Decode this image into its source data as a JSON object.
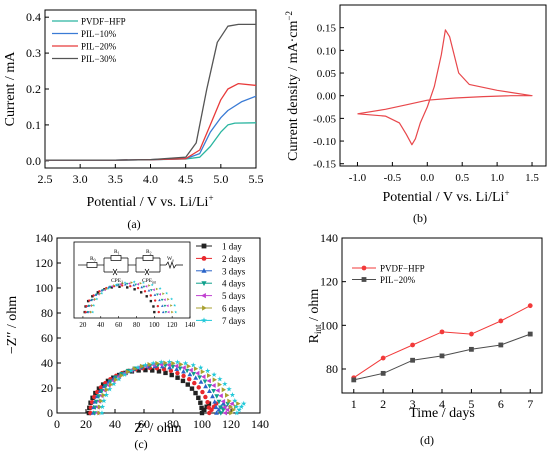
{
  "chart_data": [
    {
      "id": "a",
      "type": "line",
      "panel_label": "(a)",
      "xlabel": "Potential / V vs. Li/Li",
      "xlabel_sup": "+",
      "ylabel": "Current / mA",
      "xlim": [
        2.5,
        5.5
      ],
      "ylim": [
        -0.02,
        0.42
      ],
      "xticks": [
        "2.5",
        "3.0",
        "3.5",
        "4.0",
        "4.5",
        "5.0",
        "5.5"
      ],
      "yticks": [
        "0.0",
        "0.1",
        "0.2",
        "0.3",
        "0.4"
      ],
      "legend_position": "top-left",
      "series": [
        {
          "name": "PVDF−HFP",
          "color": "#2ab5a0",
          "points": [
            [
              2.5,
              0.002
            ],
            [
              3.0,
              0.002
            ],
            [
              3.5,
              0.002
            ],
            [
              4.0,
              0.003
            ],
            [
              4.5,
              0.005
            ],
            [
              4.7,
              0.01
            ],
            [
              4.85,
              0.04
            ],
            [
              5.0,
              0.08
            ],
            [
              5.1,
              0.1
            ],
            [
              5.2,
              0.105
            ],
            [
              5.5,
              0.106
            ]
          ]
        },
        {
          "name": "PIL−10%",
          "color": "#3a7bd5",
          "points": [
            [
              2.5,
              0.002
            ],
            [
              3.0,
              0.002
            ],
            [
              3.5,
              0.002
            ],
            [
              4.0,
              0.003
            ],
            [
              4.5,
              0.006
            ],
            [
              4.7,
              0.02
            ],
            [
              4.85,
              0.08
            ],
            [
              5.0,
              0.12
            ],
            [
              5.1,
              0.14
            ],
            [
              5.3,
              0.165
            ],
            [
              5.5,
              0.18
            ]
          ]
        },
        {
          "name": "PIL−20%",
          "color": "#e83a3a",
          "points": [
            [
              2.5,
              0.002
            ],
            [
              3.0,
              0.002
            ],
            [
              3.5,
              0.002
            ],
            [
              4.0,
              0.003
            ],
            [
              4.5,
              0.006
            ],
            [
              4.7,
              0.03
            ],
            [
              4.85,
              0.1
            ],
            [
              5.0,
              0.17
            ],
            [
              5.1,
              0.2
            ],
            [
              5.25,
              0.215
            ],
            [
              5.5,
              0.21
            ]
          ]
        },
        {
          "name": "PIL−30%",
          "color": "#555555",
          "points": [
            [
              2.5,
              0.002
            ],
            [
              3.0,
              0.002
            ],
            [
              3.5,
              0.002
            ],
            [
              4.0,
              0.003
            ],
            [
              4.5,
              0.01
            ],
            [
              4.65,
              0.05
            ],
            [
              4.8,
              0.2
            ],
            [
              4.95,
              0.33
            ],
            [
              5.1,
              0.375
            ],
            [
              5.25,
              0.38
            ],
            [
              5.5,
              0.38
            ]
          ]
        }
      ]
    },
    {
      "id": "b",
      "type": "line",
      "panel_label": "(b)",
      "xlabel": "Potential / V vs. Li/Li",
      "xlabel_sup": "+",
      "ylabel": "Current density / mA·cm",
      "ylabel_sup": "−2",
      "xlim": [
        -1.25,
        1.7
      ],
      "ylim": [
        -0.155,
        0.2
      ],
      "xticks": [
        "-1.0",
        "-0.5",
        "0.0",
        "0.5",
        "1.0",
        "1.5"
      ],
      "yticks": [
        "-0.15",
        "-0.10",
        "-0.05",
        "0.00",
        "0.05",
        "0.10",
        "0.15"
      ],
      "series": [
        {
          "name": "",
          "color": "#e8474b",
          "points": [
            [
              -1.0,
              -0.04
            ],
            [
              -0.6,
              -0.045
            ],
            [
              -0.4,
              -0.06
            ],
            [
              -0.3,
              -0.085
            ],
            [
              -0.22,
              -0.108
            ],
            [
              -0.17,
              -0.095
            ],
            [
              -0.1,
              -0.06
            ],
            [
              0.0,
              -0.025
            ],
            [
              0.1,
              0.02
            ],
            [
              0.2,
              0.09
            ],
            [
              0.26,
              0.145
            ],
            [
              0.32,
              0.13
            ],
            [
              0.45,
              0.05
            ],
            [
              0.6,
              0.025
            ],
            [
              1.0,
              0.012
            ],
            [
              1.5,
              0.0
            ],
            [
              1.2,
              0.0
            ],
            [
              0.8,
              -0.002
            ],
            [
              0.4,
              -0.005
            ],
            [
              0.0,
              -0.01
            ],
            [
              -0.3,
              -0.02
            ],
            [
              -0.6,
              -0.03
            ],
            [
              -1.0,
              -0.04
            ]
          ]
        }
      ]
    },
    {
      "id": "c",
      "type": "scatter",
      "panel_label": "(c)",
      "xlabel": "Z′ / ohm",
      "ylabel": "−Z′′ / ohm",
      "xlim": [
        0,
        140
      ],
      "ylim": [
        0,
        140
      ],
      "xticks": [
        "0",
        "20",
        "40",
        "60",
        "80",
        "100",
        "120",
        "140"
      ],
      "yticks": [
        "0",
        "20",
        "40",
        "60",
        "80",
        "100",
        "120",
        "140"
      ],
      "legend_position": "top-right",
      "series": [
        {
          "name": "1 day",
          "color": "#222222",
          "marker": "square",
          "x0": 22,
          "x1": 100
        },
        {
          "name": "2 days",
          "color": "#e8282d",
          "marker": "circle",
          "x0": 23,
          "x1": 105
        },
        {
          "name": "3 days",
          "color": "#2a64c8",
          "marker": "triangle-up",
          "x0": 25,
          "x1": 110
        },
        {
          "name": "4 days",
          "color": "#0fa08c",
          "marker": "triangle-down",
          "x0": 26,
          "x1": 113
        },
        {
          "name": "5 days",
          "color": "#c040d0",
          "marker": "triangle-left",
          "x0": 28,
          "x1": 116
        },
        {
          "name": "6 days",
          "color": "#a8a030",
          "marker": "triangle-right",
          "x0": 29,
          "x1": 120
        },
        {
          "name": "7 days",
          "color": "#20c8d8",
          "marker": "star",
          "x0": 31,
          "x1": 124
        }
      ],
      "inset": {
        "circuit_labels": [
          "R",
          "R",
          "R",
          "W",
          "CPE",
          "CPE"
        ],
        "circuit_subs": [
          "0",
          "1",
          "2",
          "o",
          "1",
          "int"
        ],
        "xticks": [
          "20",
          "40",
          "60",
          "80",
          "100",
          "120",
          "140"
        ]
      }
    },
    {
      "id": "d",
      "type": "line",
      "panel_label": "(d)",
      "xlabel": "Time / days",
      "ylabel_main": "R",
      "ylabel_sub": "int",
      "ylabel_tail": " / ohm",
      "xlim": [
        0.6,
        7.4
      ],
      "ylim": [
        69,
        140
      ],
      "xticks": [
        "1",
        "2",
        "3",
        "4",
        "5",
        "6",
        "7"
      ],
      "yticks": [
        "80",
        "100",
        "120",
        "140"
      ],
      "legend_position": "top-left",
      "categories": [
        1,
        2,
        3,
        4,
        5,
        6,
        7
      ],
      "series": [
        {
          "name": "PVDF−HFP",
          "color": "#f23a3a",
          "marker": "circle",
          "values": [
            76,
            85,
            91,
            97,
            96,
            102,
            109
          ]
        },
        {
          "name": "PIL−20%",
          "color": "#4d4d4d",
          "marker": "square",
          "values": [
            75,
            78,
            84,
            86,
            89,
            91,
            96
          ]
        }
      ]
    }
  ]
}
